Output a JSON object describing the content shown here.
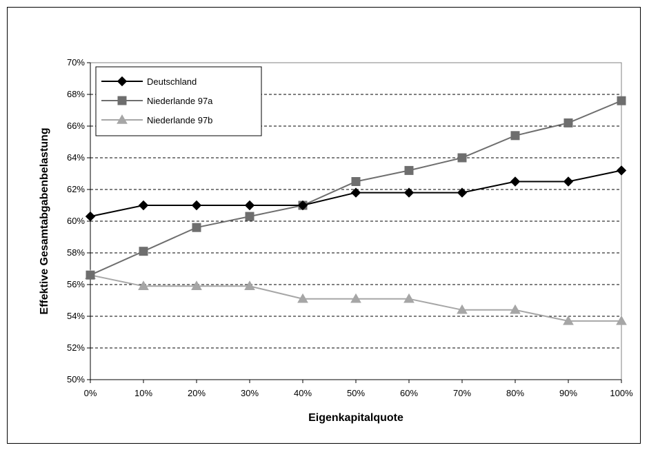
{
  "chart_data": {
    "type": "line",
    "title": "",
    "xlabel": "Eigenkapitalquote",
    "ylabel": "Effektive Gesamtabgabenbelastung",
    "categories": [
      "0%",
      "10%",
      "20%",
      "30%",
      "40%",
      "50%",
      "60%",
      "70%",
      "80%",
      "90%",
      "100%"
    ],
    "y_ticks": [
      "50%",
      "52%",
      "54%",
      "56%",
      "58%",
      "60%",
      "62%",
      "64%",
      "66%",
      "68%",
      "70%"
    ],
    "ylim": [
      50,
      70
    ],
    "y_unit": "%",
    "grid": "horizontal-dashed",
    "legend_position": "top-left",
    "series": [
      {
        "name": "Deutschland",
        "marker": "diamond",
        "color": "#000000",
        "values": [
          60.3,
          61.0,
          61.0,
          61.0,
          61.0,
          61.8,
          61.8,
          61.8,
          62.5,
          62.5,
          63.2
        ]
      },
      {
        "name": "Niederlande 97a",
        "marker": "square",
        "color": "#6e6e6e",
        "values": [
          56.6,
          58.1,
          59.6,
          60.3,
          61.0,
          62.5,
          63.2,
          64.0,
          65.4,
          66.2,
          67.6
        ]
      },
      {
        "name": "Niederlande 97b",
        "marker": "triangle",
        "color": "#a6a6a6",
        "values": [
          56.6,
          55.9,
          55.9,
          55.9,
          55.1,
          55.1,
          55.1,
          54.4,
          54.4,
          53.7,
          53.7
        ]
      }
    ]
  }
}
